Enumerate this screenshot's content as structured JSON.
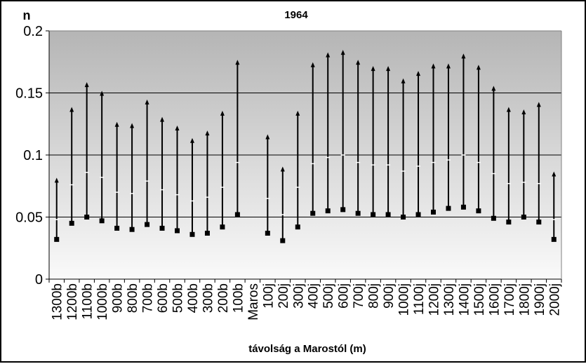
{
  "chart_data": {
    "type": "range",
    "title": "1964",
    "ylabel": "n",
    "xlabel": "távolság a Marostól (m)",
    "ylim": [
      0,
      0.2
    ],
    "yticks": [
      0,
      0.05,
      0.1,
      0.15,
      0.2
    ],
    "ytick_labels": [
      "0",
      "0.05",
      "0.1",
      "0.15",
      "0.2"
    ],
    "grid": true,
    "legend": "none",
    "colors": {
      "line": "#000000",
      "plot_top": "#b5b5b5",
      "plot_bottom": "#fafafa"
    },
    "categories": [
      "1300b",
      "1200b",
      "1100b",
      "1000b",
      "900b",
      "800b",
      "700b",
      "600b",
      "500b",
      "400b",
      "300b",
      "200b",
      "100b",
      "Maros",
      "100j",
      "200j",
      "300j",
      "400j",
      "500j",
      "600j",
      "700j",
      "800j",
      "900j",
      "1000j",
      "1100j",
      "1200j",
      "1300j",
      "1400j",
      "1500j",
      "1600j",
      "1700j",
      "1800j",
      "1900j",
      "2000j"
    ],
    "min": [
      0.032,
      0.045,
      0.05,
      0.047,
      0.041,
      0.04,
      0.044,
      0.041,
      0.039,
      0.036,
      0.037,
      0.042,
      0.052,
      null,
      0.037,
      0.031,
      0.042,
      0.053,
      0.055,
      0.056,
      0.053,
      0.052,
      0.052,
      0.05,
      0.052,
      0.054,
      0.057,
      0.058,
      0.055,
      0.049,
      0.046,
      0.05,
      0.046,
      0.032
    ],
    "mean": [
      0.048,
      0.076,
      0.086,
      0.082,
      0.07,
      0.069,
      0.079,
      0.072,
      0.068,
      0.063,
      0.066,
      0.074,
      0.094,
      null,
      0.065,
      0.052,
      0.074,
      0.093,
      0.098,
      0.1,
      0.094,
      0.092,
      0.092,
      0.087,
      0.091,
      0.094,
      0.096,
      0.1,
      0.094,
      0.085,
      0.077,
      0.078,
      0.077,
      0.048
    ],
    "max": [
      0.08,
      0.137,
      0.157,
      0.15,
      0.125,
      0.124,
      0.143,
      0.129,
      0.122,
      0.112,
      0.118,
      0.134,
      0.175,
      null,
      0.115,
      0.089,
      0.134,
      0.173,
      0.181,
      0.183,
      0.175,
      0.17,
      0.17,
      0.16,
      0.166,
      0.172,
      0.172,
      0.18,
      0.171,
      0.154,
      0.137,
      0.135,
      0.141,
      0.085
    ]
  }
}
